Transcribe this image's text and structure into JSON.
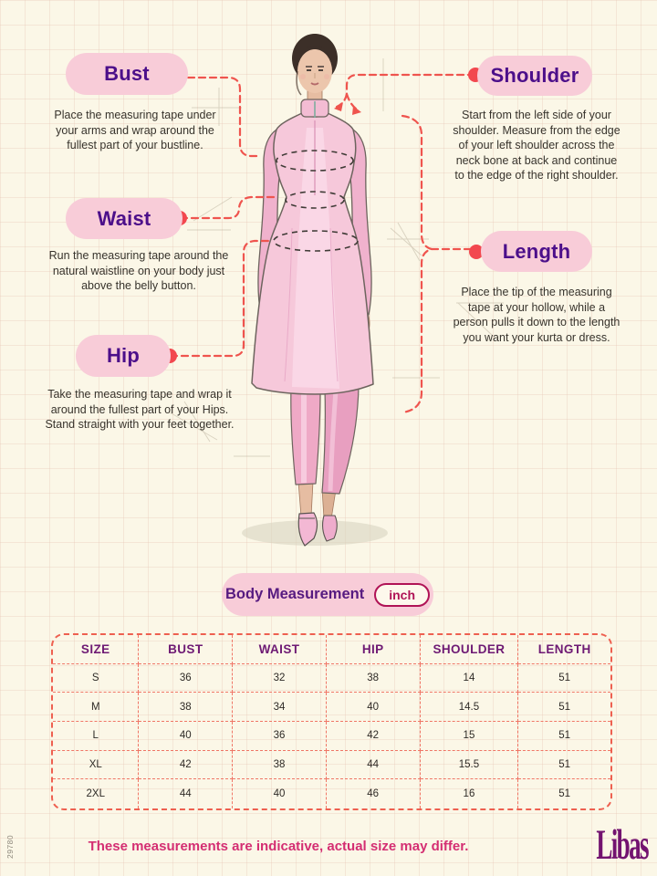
{
  "measurements": [
    {
      "id": "bust",
      "label": "Bust",
      "description": "Place the measuring tape under your arms and wrap around the fullest part of your bustline."
    },
    {
      "id": "waist",
      "label": "Waist",
      "description": "Run the measuring tape around the natural waistline on your body just above the belly button."
    },
    {
      "id": "hip",
      "label": "Hip",
      "description": "Take the measuring tape and wrap it around the fullest part of your Hips. Stand straight with your feet together."
    },
    {
      "id": "shoulder",
      "label": "Shoulder",
      "description": "Start from the left side of your shoulder. Measure from the edge of your left shoulder across the neck bone at back and continue to the edge of the right shoulder."
    },
    {
      "id": "length",
      "label": "Length",
      "description": "Place the tip of the measuring tape at your hollow, while a person pulls it down to the length you want your kurta or dress."
    }
  ],
  "table": {
    "title": "Body Measurement",
    "unit": "inch",
    "headers": [
      "SIZE",
      "BUST",
      "WAIST",
      "HIP",
      "SHOULDER",
      "LENGTH"
    ],
    "rows": [
      [
        "S",
        "36",
        "32",
        "38",
        "14",
        "51"
      ],
      [
        "M",
        "38",
        "34",
        "40",
        "14.5",
        "51"
      ],
      [
        "L",
        "40",
        "36",
        "42",
        "15",
        "51"
      ],
      [
        "XL",
        "42",
        "38",
        "44",
        "15.5",
        "51"
      ],
      [
        "2XL",
        "44",
        "40",
        "46",
        "16",
        "51"
      ]
    ]
  },
  "footer": {
    "disclaimer": "These measurements are indicative, actual size may differ.",
    "brand": "Libas"
  },
  "artwork_code": "29780",
  "colors": {
    "background": "#fbf7e7",
    "pill_pink": "#f8ccd8",
    "label_purple": "#4c0f8a",
    "connector_coral": "#ef544e",
    "table_header_purple": "#6e1a74",
    "unit_crimson": "#b01356",
    "disclaimer_pink": "#d42e72",
    "brand_purple": "#731370",
    "kurta_pink": "#f6c8da"
  }
}
